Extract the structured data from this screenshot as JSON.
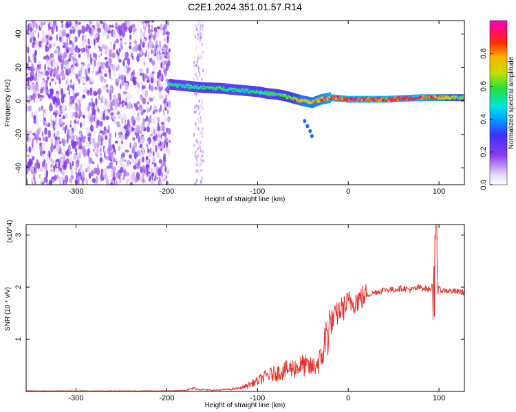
{
  "chart_data": [
    {
      "type": "heatmap",
      "title": "C2E1.2024.351.01.57.R14",
      "xlabel": "Height of straight line (km)",
      "ylabel": "Frequency (Hz)",
      "xlim": [
        -355,
        128
      ],
      "ylim": [
        -50,
        48
      ],
      "x_ticks": [
        -300,
        -200,
        -100,
        0,
        100
      ],
      "y_ticks": [
        -40,
        -20,
        0,
        20,
        40
      ],
      "colorbar": {
        "label": "Normalized spectral amplitude",
        "range": [
          0,
          1
        ],
        "ticks": [
          "0.0",
          "0.2",
          "0.4",
          "0.6",
          "0.8"
        ],
        "colors": [
          "#ffffff",
          "#e8d8f8",
          "#8a3cf0",
          "#4030ff",
          "#00a0ff",
          "#00e8e0",
          "#20e040",
          "#c0e000",
          "#ffb000",
          "#ff3000",
          "#ff1060",
          "#ff00c0"
        ]
      },
      "noise_region": {
        "x_range": [
          -355,
          -197
        ],
        "amplitude": 0.2
      },
      "ridge": {
        "x": [
          -198,
          -180,
          -160,
          -140,
          -120,
          -100,
          -90,
          -80,
          -70,
          -60,
          -50,
          -40,
          -30,
          -20,
          -10,
          0,
          20,
          40,
          60,
          80,
          100,
          128
        ],
        "y": [
          10,
          9,
          8,
          7.5,
          6.5,
          5.5,
          4.5,
          4,
          3,
          1.5,
          0,
          -1,
          1,
          2,
          1.5,
          1,
          1,
          1,
          1.5,
          2,
          2,
          2
        ],
        "amplitude": [
          0.55,
          0.55,
          0.6,
          0.6,
          0.55,
          0.6,
          0.6,
          0.6,
          0.65,
          0.7,
          0.8,
          0.8,
          0.85,
          0.9,
          0.95,
          0.95,
          0.95,
          0.95,
          0.95,
          0.95,
          0.85,
          0.6
        ]
      },
      "spur": {
        "x": [
          -48,
          -45,
          -42,
          -40
        ],
        "y": [
          -12,
          -15,
          -18,
          -21
        ]
      }
    },
    {
      "type": "line",
      "xlabel": "Height of straight line (km)",
      "ylabel": "SNR (10 * v/v)",
      "y_multiplier": "(x10^4)",
      "xlim": [
        -355,
        128
      ],
      "ylim": [
        0,
        3.2
      ],
      "x_ticks": [
        -300,
        -200,
        -100,
        0,
        100
      ],
      "y_ticks": [
        1,
        2,
        3
      ],
      "color": "#e8302a",
      "series": [
        {
          "x": [
            -355,
            -300,
            -250,
            -200,
            -180,
            -170,
            -165,
            -150,
            -130,
            -120,
            -110,
            -100,
            -90,
            -80,
            -70,
            -60,
            -50,
            -40,
            -30,
            -25,
            -20,
            -15,
            -10,
            -5,
            0,
            10,
            20,
            30,
            40,
            50,
            60,
            70,
            80,
            90,
            95,
            97,
            100,
            110,
            128
          ],
          "y": [
            0.01,
            0.01,
            0.01,
            0.01,
            0.02,
            0.06,
            0.04,
            0.02,
            0.04,
            0.06,
            0.12,
            0.2,
            0.3,
            0.35,
            0.4,
            0.45,
            0.5,
            0.45,
            0.6,
            1.0,
            1.3,
            1.4,
            1.55,
            1.6,
            1.7,
            1.75,
            1.85,
            1.9,
            1.95,
            1.95,
            1.98,
            1.95,
            2.0,
            1.95,
            2.1,
            3.1,
            1.95,
            1.93,
            1.9
          ]
        }
      ]
    }
  ]
}
